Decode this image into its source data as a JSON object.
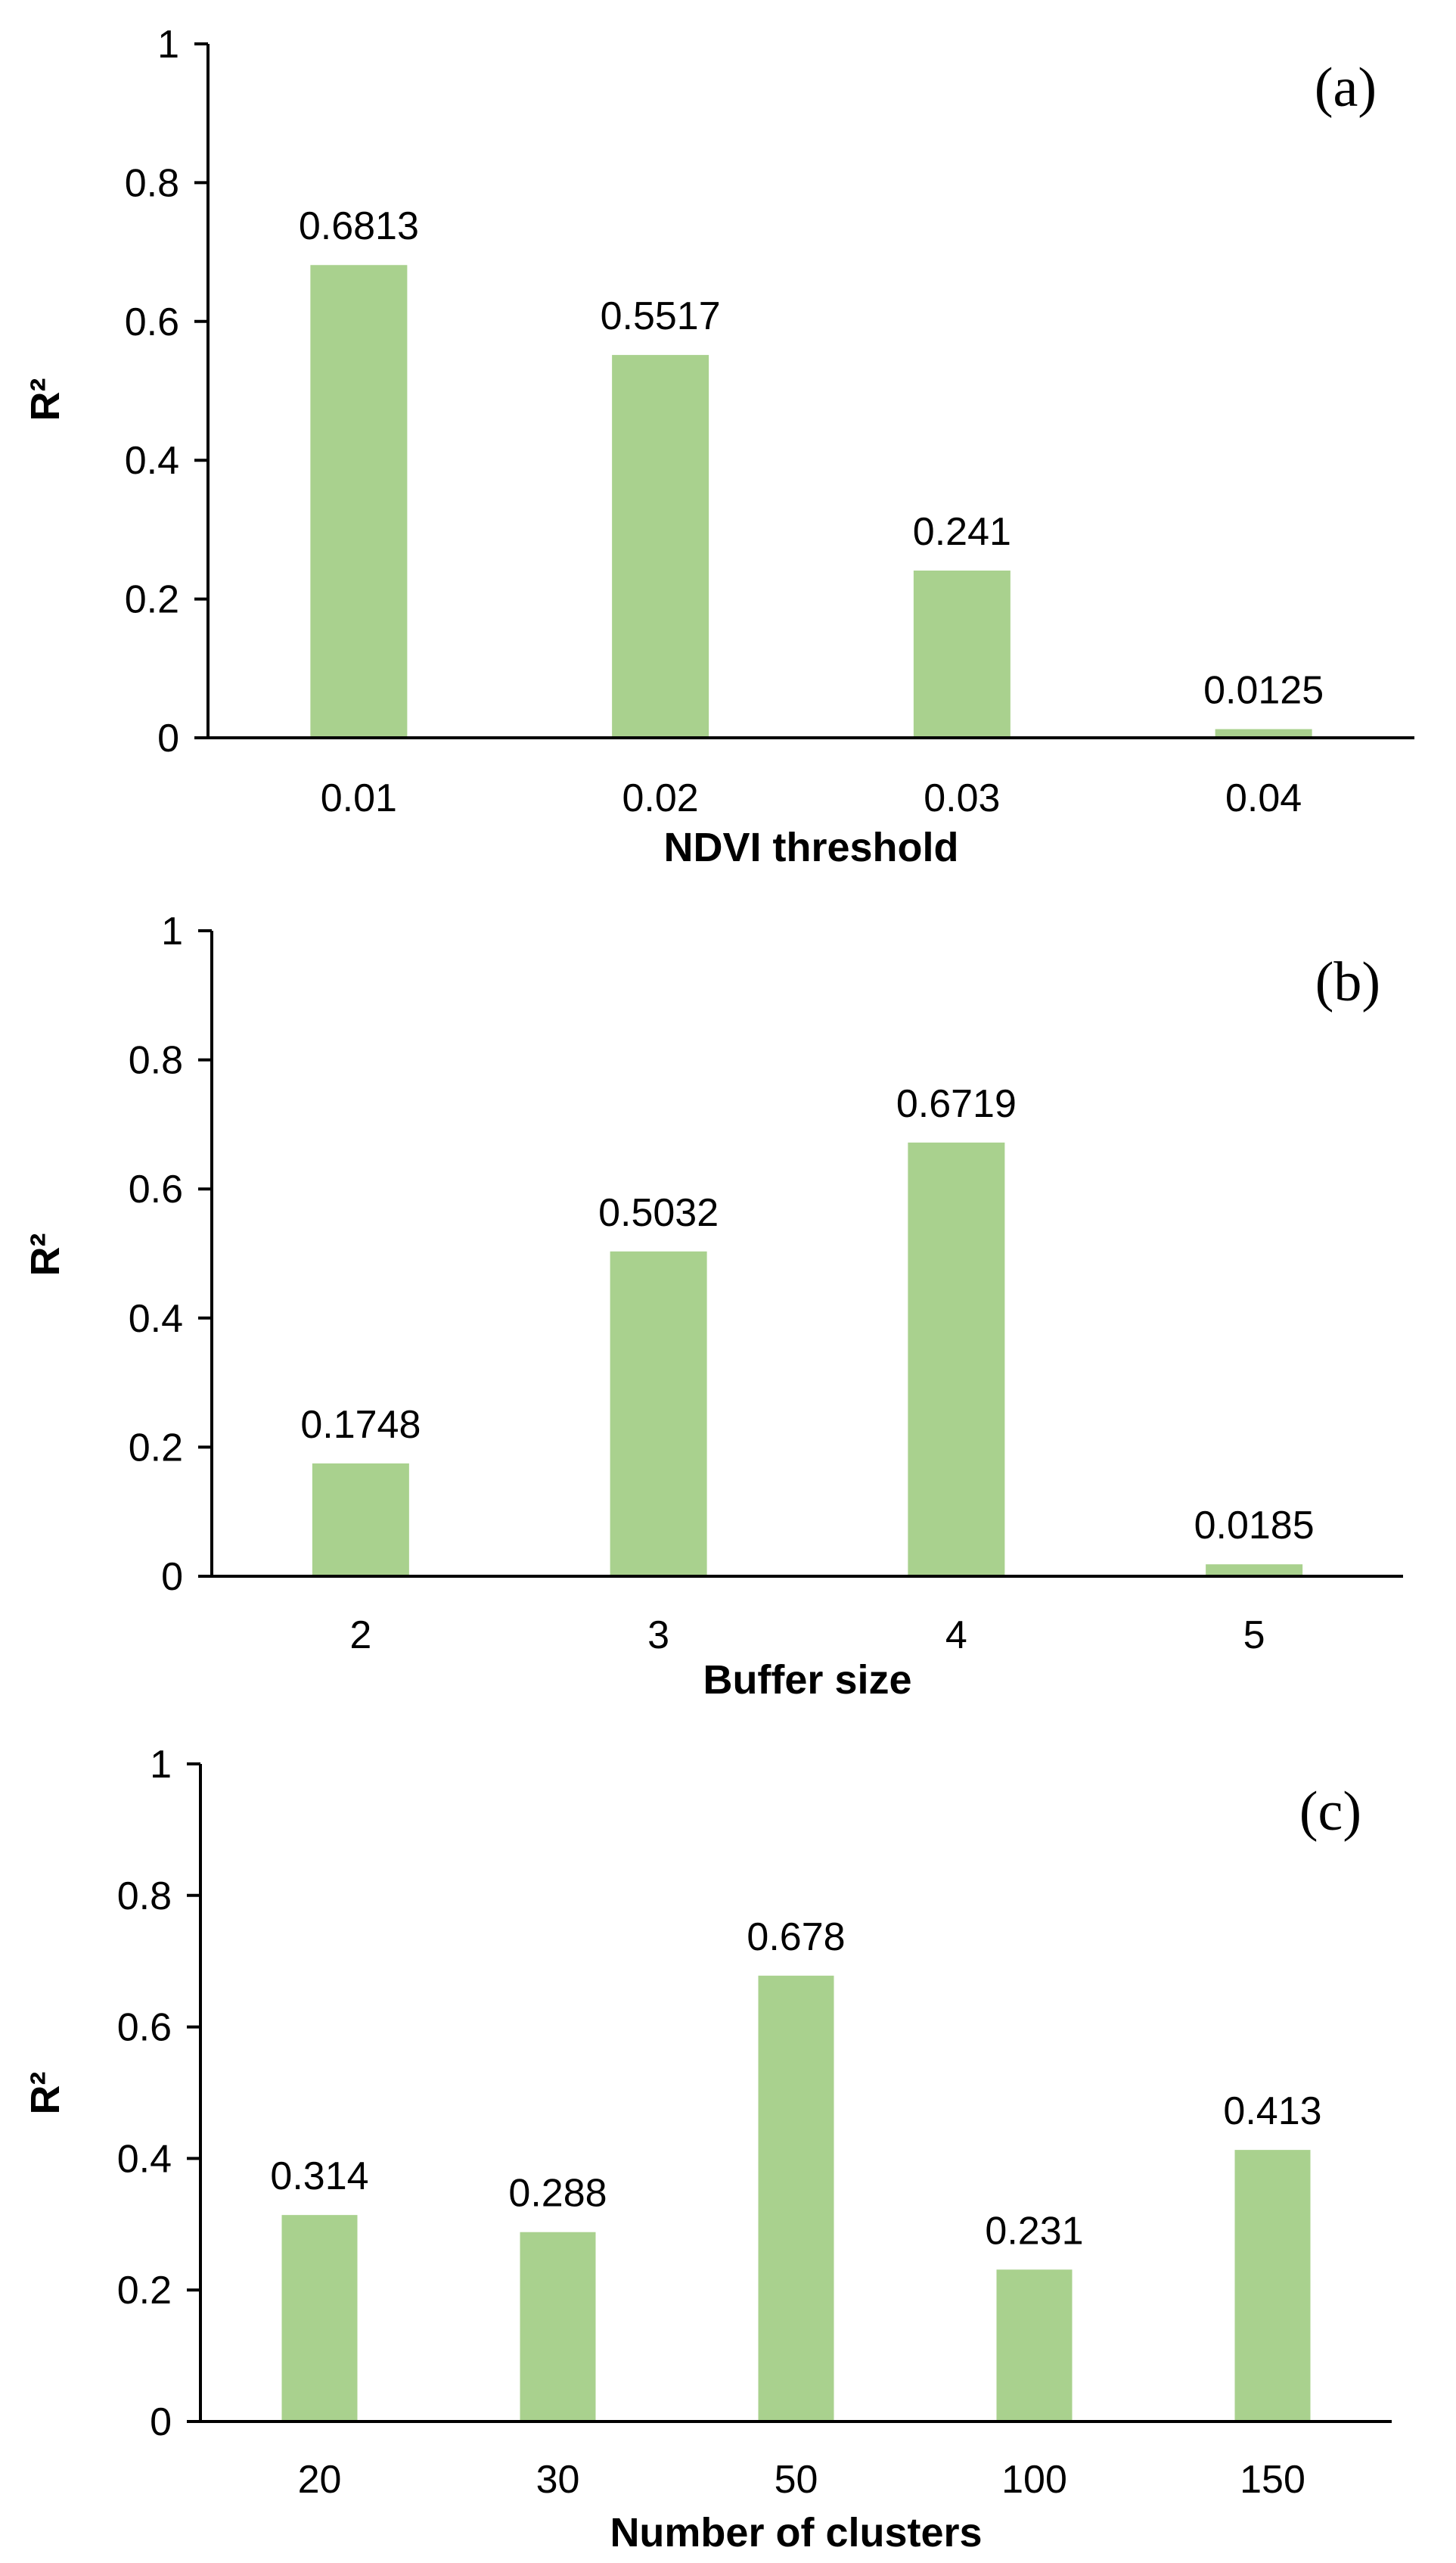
{
  "colors": {
    "bar": "#A9D18E",
    "axis": "#000000",
    "background": "#FFFFFF"
  },
  "chart_data": [
    {
      "type": "bar",
      "panel": "(a)",
      "categories": [
        "0.01",
        "0.02",
        "0.03",
        "0.04"
      ],
      "values": [
        0.6813,
        0.5517,
        0.241,
        0.0125
      ],
      "data_labels": [
        "0.6813",
        "0.5517",
        "0.241",
        "0.0125"
      ],
      "xlabel": "NDVI threshold",
      "ylabel": "R²",
      "ylim": [
        0,
        1
      ],
      "yticks": [
        "0",
        "0.2",
        "0.4",
        "0.6",
        "0.8",
        "1"
      ],
      "grid": false,
      "legend": "none"
    },
    {
      "type": "bar",
      "panel": "(b)",
      "categories": [
        "2",
        "3",
        "4",
        "5"
      ],
      "values": [
        0.1748,
        0.5032,
        0.6719,
        0.0185
      ],
      "data_labels": [
        "0.1748",
        "0.5032",
        "0.6719",
        "0.0185"
      ],
      "xlabel": "Buffer size",
      "ylabel": "R²",
      "ylim": [
        0,
        1
      ],
      "yticks": [
        "0",
        "0.2",
        "0.4",
        "0.6",
        "0.8",
        "1"
      ],
      "grid": false,
      "legend": "none"
    },
    {
      "type": "bar",
      "panel": "(c)",
      "categories": [
        "20",
        "30",
        "50",
        "100",
        "150"
      ],
      "values": [
        0.314,
        0.288,
        0.678,
        0.231,
        0.413
      ],
      "data_labels": [
        "0.314",
        "0.288",
        "0.678",
        "0.231",
        "0.413"
      ],
      "xlabel": "Number of clusters",
      "ylabel": "R²",
      "ylim": [
        0,
        1
      ],
      "yticks": [
        "0",
        "0.2",
        "0.4",
        "0.6",
        "0.8",
        "1"
      ],
      "grid": false,
      "legend": "none"
    }
  ]
}
